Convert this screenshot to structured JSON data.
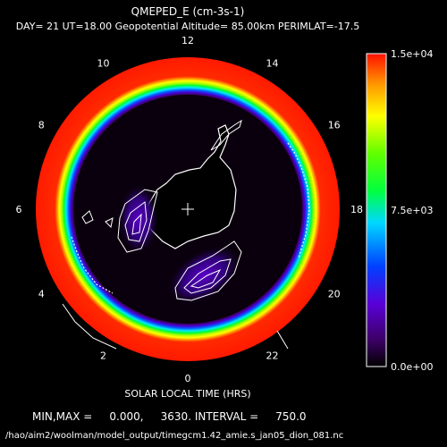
{
  "chart_data": {
    "type": "heatmap",
    "title": "QMEPED_E (cm-3s-1)",
    "subtitle": "DAY= 21 UT=18.00 Geopotential Altitude= 85.00km PERIMLAT=-17.5",
    "projection": "south-polar-stereographic",
    "local_time_labels": [
      "12",
      "14",
      "16",
      "18",
      "20",
      "22",
      "0",
      "2",
      "4",
      "6",
      "8",
      "10"
    ],
    "xlabel": "SOLAR LOCAL TIME (HRS)",
    "colorbar": {
      "min_label": "0.0e+00",
      "mid_label": "7.5e+03",
      "max_label": "1.5e+04",
      "range": [
        0,
        15000
      ]
    },
    "stats_line": "MIN,MAX =     0.000,     3630. INTERVAL =     750.0",
    "file_path": "/hao/aim2/woolman/model_output/timegcm1.42_amie.s_jan05_dion_081.nc",
    "contour_interval": 750,
    "min": 0.0,
    "max": 3630
  },
  "colors": {
    "background": "#000000",
    "rim": "#ff1a00",
    "interior": "#0a000d",
    "coast": "#ffffff"
  }
}
